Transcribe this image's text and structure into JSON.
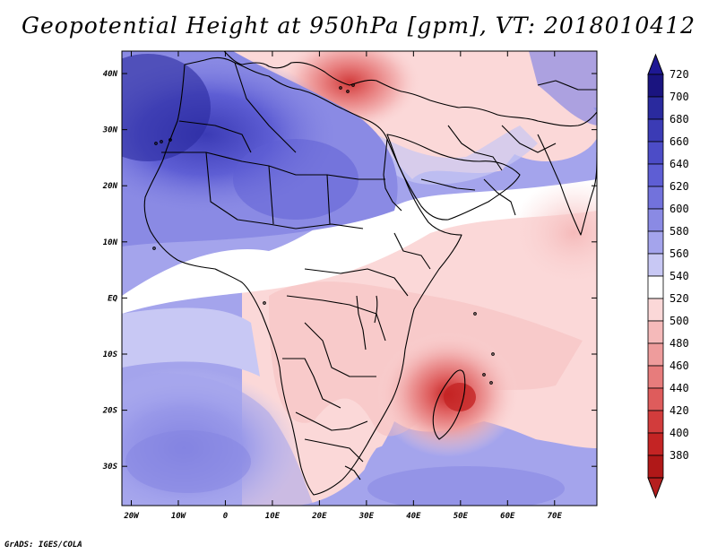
{
  "title": "Geopotential Height at 950hPa [gpm], VT: 2018010412",
  "credit": "GrADS: IGES/COLA",
  "map": {
    "lat_labels": [
      {
        "label": "40N",
        "lat": 40
      },
      {
        "label": "30N",
        "lat": 30
      },
      {
        "label": "20N",
        "lat": 20
      },
      {
        "label": "10N",
        "lat": 10
      },
      {
        "label": "EQ",
        "lat": 0
      },
      {
        "label": "10S",
        "lat": -10
      },
      {
        "label": "20S",
        "lat": -20
      },
      {
        "label": "30S",
        "lat": -30
      }
    ],
    "lon_labels": [
      {
        "label": "20W",
        "lon": -20
      },
      {
        "label": "10W",
        "lon": -10
      },
      {
        "label": "0",
        "lon": 0
      },
      {
        "label": "10E",
        "lon": 10
      },
      {
        "label": "20E",
        "lon": 20
      },
      {
        "label": "30E",
        "lon": 30
      },
      {
        "label": "40E",
        "lon": 40
      },
      {
        "label": "50E",
        "lon": 50
      },
      {
        "label": "60E",
        "lon": 60
      },
      {
        "label": "70E",
        "lon": 70
      }
    ],
    "extent": {
      "lon_min": -22,
      "lon_max": 79,
      "lat_min": -37,
      "lat_max": 44
    }
  },
  "colorbar": {
    "levels": [
      "720",
      "700",
      "680",
      "660",
      "640",
      "620",
      "600",
      "580",
      "560",
      "540",
      "520",
      "500",
      "480",
      "460",
      "440",
      "420",
      "400",
      "380"
    ],
    "colors": [
      "#1a1480",
      "#2a2a9e",
      "#3b3bb5",
      "#4c4cc7",
      "#5e5ed4",
      "#7272dc",
      "#8a8ae4",
      "#a4a4ec",
      "#c8c8f4",
      "#ffffff",
      "#fbd8d8",
      "#f5baba",
      "#ee9c9c",
      "#e77c7c",
      "#de5c5c",
      "#d23c3c",
      "#c42424",
      "#b01818"
    ],
    "top_color": "#1e1894",
    "bottom_color": "#b51e1e"
  }
}
